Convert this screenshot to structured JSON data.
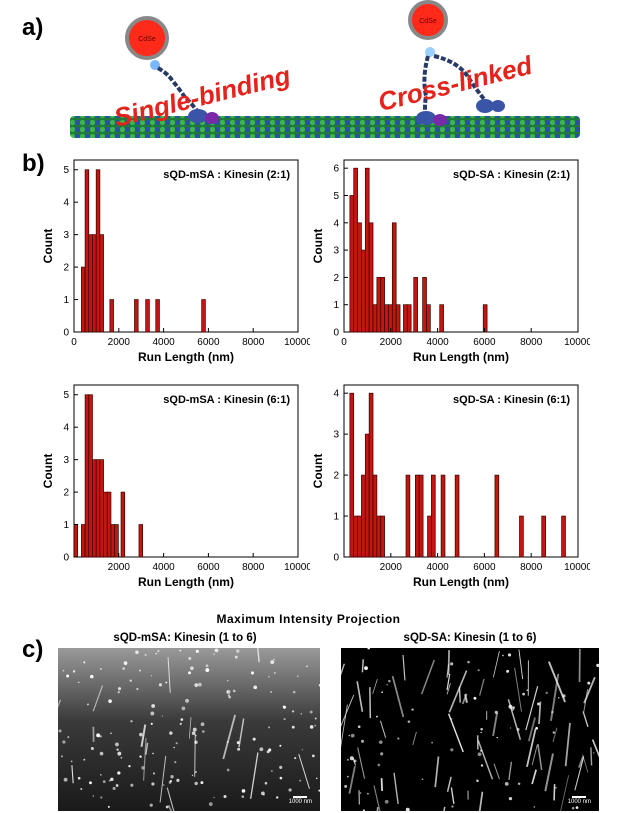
{
  "panel_labels": {
    "a": "a)",
    "b": "b)",
    "c": "c)"
  },
  "schematic": {
    "left_label": "Single-binding",
    "right_label": "Cross-linked",
    "qd_label": "CdSe"
  },
  "chart_data": [
    {
      "type": "bar",
      "title": "sQD-mSA : Kinesin (2:1)",
      "xlabel": "Run Length (nm)",
      "ylabel": "Count",
      "xlim": [
        0,
        10000
      ],
      "ylim": [
        0,
        5.3
      ],
      "xticks": [
        0,
        2000,
        4000,
        6000,
        8000,
        10000
      ],
      "yticks": [
        0,
        1,
        2,
        3,
        4,
        5
      ],
      "bin_width": 165,
      "bins": [
        {
          "x": 330,
          "count": 2
        },
        {
          "x": 495,
          "count": 5
        },
        {
          "x": 660,
          "count": 3
        },
        {
          "x": 825,
          "count": 3
        },
        {
          "x": 990,
          "count": 5
        },
        {
          "x": 1155,
          "count": 3
        },
        {
          "x": 1600,
          "count": 1
        },
        {
          "x": 2700,
          "count": 1
        },
        {
          "x": 3200,
          "count": 1
        },
        {
          "x": 3650,
          "count": 1
        },
        {
          "x": 5700,
          "count": 1
        }
      ]
    },
    {
      "type": "bar",
      "title": "sQD-SA : Kinesin (2:1)",
      "xlabel": "Run Length (nm)",
      "ylabel": "Count",
      "xlim": [
        0,
        10000
      ],
      "ylim": [
        0,
        6.3
      ],
      "xticks": [
        0,
        2000,
        4000,
        6000,
        8000,
        10000
      ],
      "yticks": [
        0,
        1,
        2,
        3,
        4,
        5,
        6
      ],
      "bin_width": 165,
      "bins": [
        {
          "x": 250,
          "count": 5
        },
        {
          "x": 415,
          "count": 6
        },
        {
          "x": 580,
          "count": 4
        },
        {
          "x": 745,
          "count": 3
        },
        {
          "x": 910,
          "count": 6
        },
        {
          "x": 1075,
          "count": 4
        },
        {
          "x": 1240,
          "count": 1
        },
        {
          "x": 1405,
          "count": 2
        },
        {
          "x": 1570,
          "count": 2
        },
        {
          "x": 1735,
          "count": 1
        },
        {
          "x": 1900,
          "count": 1
        },
        {
          "x": 2065,
          "count": 4
        },
        {
          "x": 2230,
          "count": 1
        },
        {
          "x": 2540,
          "count": 1
        },
        {
          "x": 2705,
          "count": 1
        },
        {
          "x": 2980,
          "count": 2
        },
        {
          "x": 3360,
          "count": 2
        },
        {
          "x": 3525,
          "count": 1
        },
        {
          "x": 4090,
          "count": 1
        },
        {
          "x": 5950,
          "count": 1
        }
      ]
    },
    {
      "type": "bar",
      "title": "sQD-mSA : Kinesin (6:1)",
      "xlabel": "Run Length (nm)",
      "ylabel": "Count",
      "xlim": [
        0,
        10000
      ],
      "ylim": [
        0,
        5.3
      ],
      "xticks": [
        2000,
        4000,
        6000,
        8000,
        10000
      ],
      "yticks": [
        0,
        1,
        2,
        3,
        4,
        5
      ],
      "bin_width": 165,
      "bins": [
        {
          "x": 0,
          "count": 1
        },
        {
          "x": 330,
          "count": 1
        },
        {
          "x": 495,
          "count": 5
        },
        {
          "x": 660,
          "count": 5
        },
        {
          "x": 825,
          "count": 3
        },
        {
          "x": 990,
          "count": 3
        },
        {
          "x": 1155,
          "count": 3
        },
        {
          "x": 1320,
          "count": 2
        },
        {
          "x": 1485,
          "count": 2
        },
        {
          "x": 1650,
          "count": 1
        },
        {
          "x": 1815,
          "count": 1
        },
        {
          "x": 2100,
          "count": 2
        },
        {
          "x": 2900,
          "count": 1
        }
      ]
    },
    {
      "type": "bar",
      "title": "sQD-SA : Kinesin (6:1)",
      "xlabel": "Run Length (nm)",
      "ylabel": "Count",
      "xlim": [
        0,
        10000
      ],
      "ylim": [
        0,
        4.2
      ],
      "xticks": [
        2000,
        4000,
        6000,
        8000,
        10000
      ],
      "yticks": [
        0,
        1,
        2,
        3,
        4
      ],
      "bin_width": 165,
      "bins": [
        {
          "x": 250,
          "count": 4
        },
        {
          "x": 415,
          "count": 1
        },
        {
          "x": 580,
          "count": 1
        },
        {
          "x": 745,
          "count": 2
        },
        {
          "x": 910,
          "count": 3
        },
        {
          "x": 1075,
          "count": 4
        },
        {
          "x": 1240,
          "count": 2
        },
        {
          "x": 1405,
          "count": 1
        },
        {
          "x": 1570,
          "count": 1
        },
        {
          "x": 2650,
          "count": 2
        },
        {
          "x": 3050,
          "count": 2
        },
        {
          "x": 3215,
          "count": 2
        },
        {
          "x": 3570,
          "count": 1
        },
        {
          "x": 3735,
          "count": 2
        },
        {
          "x": 4150,
          "count": 2
        },
        {
          "x": 4750,
          "count": 2
        },
        {
          "x": 6450,
          "count": 2
        },
        {
          "x": 7500,
          "count": 1
        },
        {
          "x": 8450,
          "count": 1
        },
        {
          "x": 9300,
          "count": 1
        }
      ]
    }
  ],
  "panel_c": {
    "title": "Maximum Intensity Projection",
    "left_title": "sQD-mSA: Kinesin (1 to 6)",
    "right_title": "sQD-SA: Kinesin (1 to 6)",
    "scale_label": "1000 nm"
  }
}
